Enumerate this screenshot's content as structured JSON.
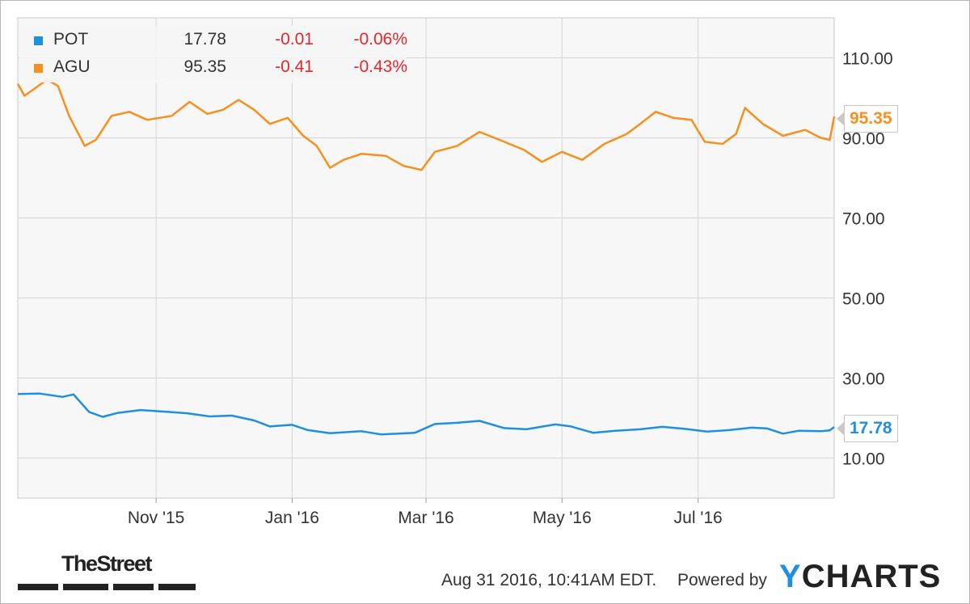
{
  "chart_data": {
    "type": "line",
    "x_ticks": [
      "Nov '15",
      "Jan '16",
      "Mar '16",
      "May '16",
      "Jul '16"
    ],
    "y_ticks": [
      "10.00",
      "30.00",
      "50.00",
      "70.00",
      "90.00",
      "110.00"
    ],
    "ylim": [
      0,
      120
    ],
    "grid": true,
    "legend_position": "top-left",
    "x_start": "2015-08-31",
    "x_end": "2016-08-31",
    "series": [
      {
        "name": "POT",
        "color": "#1f8fe0",
        "value_label": "17.78",
        "change": "-0.01",
        "change_pct": "-0.06%",
        "points": [
          [
            "2015-08-31",
            26.0
          ],
          [
            "2015-09-10",
            26.1
          ],
          [
            "2015-09-20",
            25.3
          ],
          [
            "2015-09-25",
            25.9
          ],
          [
            "2015-10-02",
            21.5
          ],
          [
            "2015-10-08",
            20.3
          ],
          [
            "2015-10-15",
            21.3
          ],
          [
            "2015-10-25",
            22.0
          ],
          [
            "2015-11-05",
            21.6
          ],
          [
            "2015-11-15",
            21.2
          ],
          [
            "2015-11-25",
            20.4
          ],
          [
            "2015-12-05",
            20.6
          ],
          [
            "2015-12-15",
            19.4
          ],
          [
            "2015-12-22",
            17.9
          ],
          [
            "2016-01-01",
            18.3
          ],
          [
            "2016-01-08",
            17.0
          ],
          [
            "2016-01-18",
            16.2
          ],
          [
            "2016-02-01",
            16.7
          ],
          [
            "2016-02-10",
            15.9
          ],
          [
            "2016-02-25",
            16.3
          ],
          [
            "2016-03-05",
            18.5
          ],
          [
            "2016-03-15",
            18.8
          ],
          [
            "2016-03-25",
            19.3
          ],
          [
            "2016-04-05",
            17.5
          ],
          [
            "2016-04-15",
            17.2
          ],
          [
            "2016-04-28",
            18.4
          ],
          [
            "2016-05-05",
            17.9
          ],
          [
            "2016-05-15",
            16.3
          ],
          [
            "2016-05-25",
            16.8
          ],
          [
            "2016-06-05",
            17.2
          ],
          [
            "2016-06-15",
            17.8
          ],
          [
            "2016-06-25",
            17.3
          ],
          [
            "2016-07-05",
            16.6
          ],
          [
            "2016-07-15",
            17.0
          ],
          [
            "2016-07-25",
            17.6
          ],
          [
            "2016-08-01",
            17.4
          ],
          [
            "2016-08-08",
            16.1
          ],
          [
            "2016-08-15",
            16.8
          ],
          [
            "2016-08-25",
            16.7
          ],
          [
            "2016-08-29",
            16.9
          ],
          [
            "2016-08-31",
            17.78
          ]
        ]
      },
      {
        "name": "AGU",
        "color": "#f7901e",
        "value_label": "95.35",
        "change": "-0.41",
        "change_pct": "-0.43%",
        "points": [
          [
            "2015-08-31",
            103.5
          ],
          [
            "2015-09-03",
            100.5
          ],
          [
            "2015-09-08",
            102.5
          ],
          [
            "2015-09-13",
            104.5
          ],
          [
            "2015-09-18",
            103.0
          ],
          [
            "2015-09-23",
            95.5
          ],
          [
            "2015-09-30",
            88.0
          ],
          [
            "2015-10-05",
            89.5
          ],
          [
            "2015-10-12",
            95.5
          ],
          [
            "2015-10-20",
            96.5
          ],
          [
            "2015-10-28",
            94.5
          ],
          [
            "2015-11-08",
            95.5
          ],
          [
            "2015-11-16",
            99.0
          ],
          [
            "2015-11-24",
            96.0
          ],
          [
            "2015-12-01",
            97.0
          ],
          [
            "2015-12-08",
            99.5
          ],
          [
            "2015-12-15",
            97.0
          ],
          [
            "2015-12-22",
            93.5
          ],
          [
            "2015-12-30",
            95.0
          ],
          [
            "2016-01-06",
            90.5
          ],
          [
            "2016-01-12",
            88.0
          ],
          [
            "2016-01-18",
            82.5
          ],
          [
            "2016-01-24",
            84.5
          ],
          [
            "2016-02-01",
            86.0
          ],
          [
            "2016-02-12",
            85.5
          ],
          [
            "2016-02-20",
            83.0
          ],
          [
            "2016-02-28",
            82.0
          ],
          [
            "2016-03-05",
            86.5
          ],
          [
            "2016-03-15",
            88.0
          ],
          [
            "2016-03-25",
            91.5
          ],
          [
            "2016-04-03",
            89.5
          ],
          [
            "2016-04-14",
            87.0
          ],
          [
            "2016-04-22",
            84.0
          ],
          [
            "2016-05-01",
            86.5
          ],
          [
            "2016-05-10",
            84.5
          ],
          [
            "2016-05-20",
            88.5
          ],
          [
            "2016-05-30",
            91.0
          ],
          [
            "2016-06-05",
            93.5
          ],
          [
            "2016-06-12",
            96.5
          ],
          [
            "2016-06-20",
            95.0
          ],
          [
            "2016-06-28",
            94.5
          ],
          [
            "2016-07-04",
            89.0
          ],
          [
            "2016-07-12",
            88.5
          ],
          [
            "2016-07-18",
            91.0
          ],
          [
            "2016-07-22",
            97.5
          ],
          [
            "2016-07-30",
            93.5
          ],
          [
            "2016-08-08",
            90.5
          ],
          [
            "2016-08-18",
            92.0
          ],
          [
            "2016-08-25",
            90.0
          ],
          [
            "2016-08-29",
            89.5
          ],
          [
            "2016-08-31",
            95.35
          ]
        ]
      }
    ]
  },
  "footer": {
    "timestamp": "Aug 31 2016, 10:41AM EDT.",
    "powered_by": "Powered by",
    "brand_y": "Y",
    "brand_rest": "CHARTS",
    "publisher": "TheStreet"
  }
}
